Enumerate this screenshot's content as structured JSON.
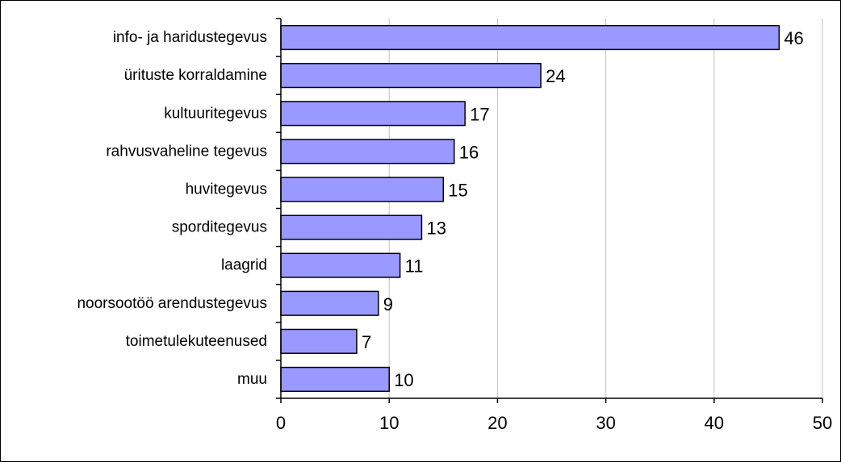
{
  "chart_data": {
    "type": "bar",
    "orientation": "horizontal",
    "categories": [
      "info- ja haridustegevus",
      "ürituste korraldamine",
      "kultuuritegevus",
      "rahvusvaheline tegevus",
      "huvitegevus",
      "sporditegevus",
      "laagrid",
      "noorsootöö arendustegevus",
      "toimetulekuteenused",
      "muu"
    ],
    "values": [
      46,
      24,
      17,
      16,
      15,
      13,
      11,
      9,
      7,
      10
    ],
    "value_labels": [
      "46",
      "24",
      "17",
      "16",
      "15",
      "13",
      "11",
      "9",
      "7",
      "10"
    ],
    "title": "",
    "xlabel": "",
    "ylabel": "",
    "xlim": [
      0,
      50
    ],
    "x_ticks": [
      "0",
      "10",
      "20",
      "30",
      "40",
      "50"
    ],
    "grid": "vertical gridlines",
    "legend": "none",
    "bar_color": "#9999ff",
    "bar_edge_color": "#000000"
  }
}
